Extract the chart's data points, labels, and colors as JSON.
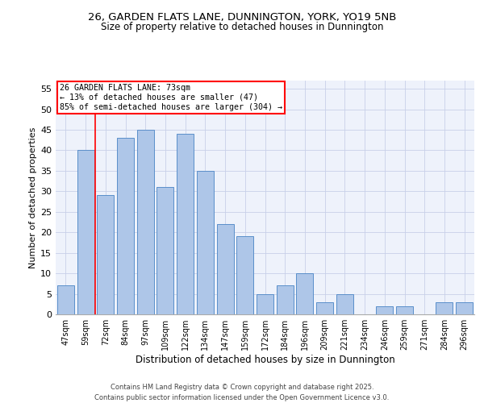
{
  "title1": "26, GARDEN FLATS LANE, DUNNINGTON, YORK, YO19 5NB",
  "title2": "Size of property relative to detached houses in Dunnington",
  "xlabel": "Distribution of detached houses by size in Dunnington",
  "ylabel": "Number of detached properties",
  "categories": [
    "47sqm",
    "59sqm",
    "72sqm",
    "84sqm",
    "97sqm",
    "109sqm",
    "122sqm",
    "134sqm",
    "147sqm",
    "159sqm",
    "172sqm",
    "184sqm",
    "196sqm",
    "209sqm",
    "221sqm",
    "234sqm",
    "246sqm",
    "259sqm",
    "271sqm",
    "284sqm",
    "296sqm"
  ],
  "values": [
    7,
    40,
    29,
    43,
    45,
    31,
    44,
    35,
    22,
    19,
    5,
    7,
    10,
    3,
    5,
    0,
    2,
    2,
    0,
    3,
    3
  ],
  "bar_color": "#aec6e8",
  "bar_edge_color": "#5a8fca",
  "vline_x": 1.5,
  "vline_color": "red",
  "annotation_text": "26 GARDEN FLATS LANE: 73sqm\n← 13% of detached houses are smaller (47)\n85% of semi-detached houses are larger (304) →",
  "annotation_box_color": "white",
  "annotation_box_edge_color": "red",
  "ylim": [
    0,
    57
  ],
  "yticks": [
    0,
    5,
    10,
    15,
    20,
    25,
    30,
    35,
    40,
    45,
    50,
    55
  ],
  "footer": "Contains HM Land Registry data © Crown copyright and database right 2025.\nContains public sector information licensed under the Open Government Licence v3.0.",
  "bg_color": "#eef2fb",
  "grid_color": "#c8d0e8",
  "fig_bg": "#ffffff"
}
